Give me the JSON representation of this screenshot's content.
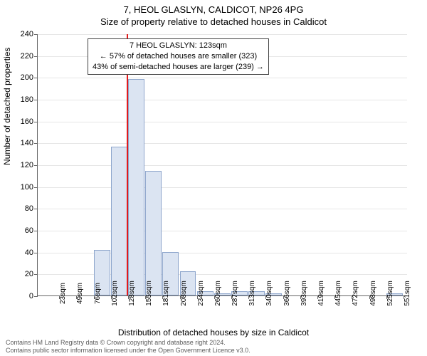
{
  "title_line1": "7, HEOL GLASLYN, CALDICOT, NP26 4PG",
  "title_line2": "Size of property relative to detached houses in Caldicot",
  "ylabel": "Number of detached properties",
  "xlabel": "Distribution of detached houses by size in Caldicot",
  "chart": {
    "type": "histogram",
    "background_color": "#ffffff",
    "grid_color": "#e6e6e6",
    "axis_color": "#666666",
    "bar_fill": "#dbe4f2",
    "bar_stroke": "#8ea6cc",
    "marker_line_color": "#e31a1c",
    "ylim": [
      0,
      240
    ],
    "ytick_step": 20,
    "x_categories": [
      "23sqm",
      "49sqm",
      "76sqm",
      "102sqm",
      "128sqm",
      "155sqm",
      "181sqm",
      "208sqm",
      "234sqm",
      "260sqm",
      "287sqm",
      "313sqm",
      "340sqm",
      "366sqm",
      "393sqm",
      "419sqm",
      "445sqm",
      "472sqm",
      "498sqm",
      "525sqm",
      "551sqm"
    ],
    "bars": [
      0,
      0,
      0,
      42,
      136,
      198,
      114,
      40,
      22,
      4,
      2,
      4,
      4,
      2,
      0,
      0,
      0,
      0,
      0,
      0,
      2,
      0
    ],
    "bar_width_ratio": 0.95,
    "marker_x_index": 4.9,
    "title_fontsize": 13,
    "label_fontsize": 12,
    "tick_fontsize": 10
  },
  "annotation": {
    "line1": "7 HEOL GLASLYN: 123sqm",
    "line2": "← 57% of detached houses are smaller (323)",
    "line3": "43% of semi-detached houses are larger (239) →",
    "border_color": "#404040",
    "bg_color": "#ffffff"
  },
  "footer": {
    "line1": "Contains HM Land Registry data © Crown copyright and database right 2024.",
    "line2": "Contains public sector information licensed under the Open Government Licence v3.0."
  }
}
